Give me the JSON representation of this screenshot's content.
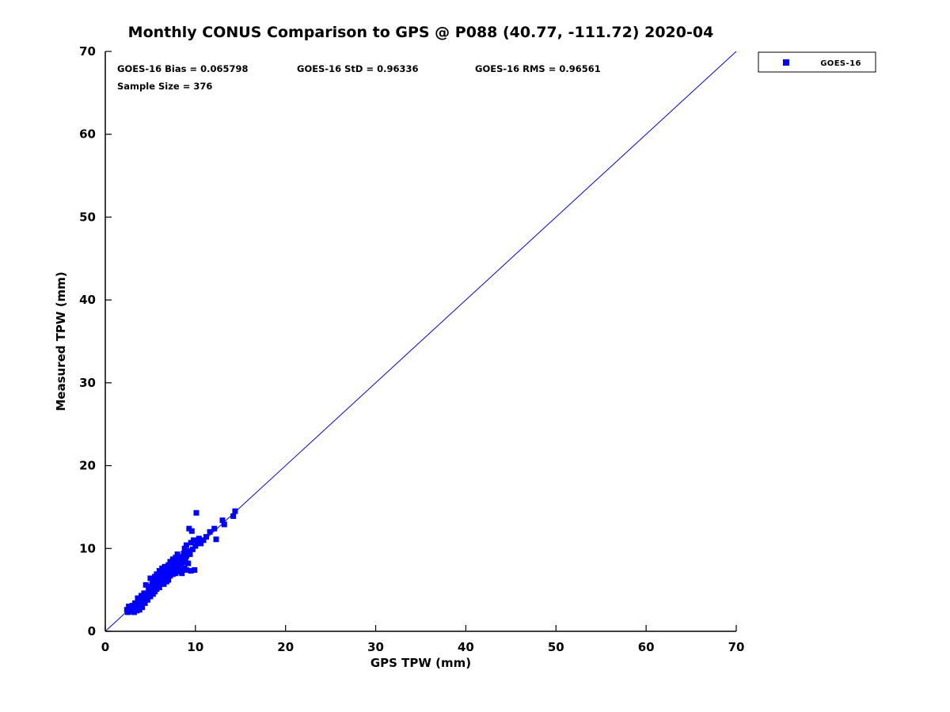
{
  "title": "Monthly CONUS Comparison to GPS @ P088 (40.77, -111.72) 2020-04",
  "annotations": {
    "bias": "GOES-16 Bias = 0.065798",
    "std": "GOES-16 StD = 0.96336",
    "rms": "GOES-16 RMS = 0.96561",
    "sample": "Sample Size = 376"
  },
  "legend": {
    "items": [
      {
        "label": "GOES-16",
        "marker": "square",
        "color": "#0000ff"
      }
    ]
  },
  "colors": {
    "marker": "#0000ff",
    "reference_line": "#0000ff",
    "axis": "#000000",
    "text": "#000000"
  },
  "chart_data": {
    "type": "scatter",
    "title": "Monthly CONUS Comparison to GPS @ P088 (40.77, -111.72) 2020-04",
    "xlabel": "GPS TPW (mm)",
    "ylabel": "Measured TPW (mm)",
    "xlim": [
      0,
      70
    ],
    "ylim": [
      0,
      70
    ],
    "xticks": [
      0,
      10,
      20,
      30,
      40,
      50,
      60,
      70
    ],
    "yticks": [
      0,
      10,
      20,
      30,
      40,
      50,
      60,
      70
    ],
    "grid": false,
    "legend_position": "top-right-outside",
    "reference_line": {
      "from": [
        0,
        0
      ],
      "to": [
        70,
        70
      ],
      "color": "#0000ff"
    },
    "stats": {
      "bias": 0.065798,
      "std": 0.96336,
      "rms": 0.96561,
      "sample_size": 376
    },
    "series": [
      {
        "name": "GOES-16",
        "marker": "square",
        "color": "#0000ff",
        "points": [
          [
            2.4,
            2.6
          ],
          [
            2.5,
            2.3
          ],
          [
            2.6,
            3.0
          ],
          [
            2.8,
            2.5
          ],
          [
            3.0,
            2.4
          ],
          [
            3.0,
            3.1
          ],
          [
            3.1,
            2.7
          ],
          [
            3.2,
            2.3
          ],
          [
            3.3,
            3.4
          ],
          [
            3.4,
            2.8
          ],
          [
            3.5,
            2.5
          ],
          [
            3.5,
            3.2
          ],
          [
            3.6,
            4.0
          ],
          [
            3.7,
            3.0
          ],
          [
            3.8,
            2.6
          ],
          [
            3.8,
            3.6
          ],
          [
            4.0,
            3.2
          ],
          [
            4.0,
            4.3
          ],
          [
            4.1,
            2.9
          ],
          [
            4.2,
            3.8
          ],
          [
            4.3,
            4.6
          ],
          [
            4.4,
            3.4
          ],
          [
            4.5,
            4.0
          ],
          [
            4.5,
            5.6
          ],
          [
            4.6,
            4.4
          ],
          [
            4.7,
            3.8
          ],
          [
            4.8,
            5.0
          ],
          [
            4.9,
            4.6
          ],
          [
            5.0,
            4.2
          ],
          [
            5.0,
            5.4
          ],
          [
            5.0,
            6.4
          ],
          [
            5.1,
            4.9
          ],
          [
            5.2,
            5.7
          ],
          [
            5.3,
            4.5
          ],
          [
            5.3,
            6.0
          ],
          [
            5.4,
            5.2
          ],
          [
            5.5,
            4.8
          ],
          [
            5.5,
            6.6
          ],
          [
            5.6,
            5.9
          ],
          [
            5.7,
            5.1
          ],
          [
            5.7,
            6.9
          ],
          [
            5.8,
            5.5
          ],
          [
            5.9,
            6.2
          ],
          [
            6.0,
            5.3
          ],
          [
            6.0,
            6.6
          ],
          [
            6.0,
            7.3
          ],
          [
            6.1,
            5.8
          ],
          [
            6.2,
            6.9
          ],
          [
            6.3,
            6.1
          ],
          [
            6.3,
            7.6
          ],
          [
            6.4,
            6.5
          ],
          [
            6.5,
            5.7
          ],
          [
            6.5,
            7.1
          ],
          [
            6.6,
            6.3
          ],
          [
            6.6,
            7.8
          ],
          [
            6.7,
            6.8
          ],
          [
            6.8,
            6.0
          ],
          [
            6.8,
            7.4
          ],
          [
            6.9,
            6.6
          ],
          [
            7.0,
            6.2
          ],
          [
            7.0,
            7.1
          ],
          [
            7.0,
            8.0
          ],
          [
            7.1,
            7.6
          ],
          [
            7.2,
            6.7
          ],
          [
            7.2,
            8.4
          ],
          [
            7.3,
            7.3
          ],
          [
            7.4,
            7.9
          ],
          [
            7.5,
            6.9
          ],
          [
            7.5,
            8.7
          ],
          [
            7.6,
            7.5
          ],
          [
            7.7,
            8.2
          ],
          [
            7.8,
            7.0
          ],
          [
            7.8,
            8.9
          ],
          [
            7.9,
            7.7
          ],
          [
            8.0,
            7.2
          ],
          [
            8.0,
            8.4
          ],
          [
            8.0,
            9.3
          ],
          [
            8.1,
            7.9
          ],
          [
            8.2,
            8.7
          ],
          [
            8.3,
            7.4
          ],
          [
            8.3,
            9.0
          ],
          [
            8.4,
            8.1
          ],
          [
            8.5,
            7.0
          ],
          [
            8.5,
            8.9
          ],
          [
            8.6,
            8.3
          ],
          [
            8.7,
            9.4
          ],
          [
            8.8,
            7.6
          ],
          [
            8.8,
            10.0
          ],
          [
            8.9,
            8.6
          ],
          [
            9.0,
            7.4
          ],
          [
            9.0,
            9.1
          ],
          [
            9.0,
            10.4
          ],
          [
            9.1,
            9.7
          ],
          [
            9.2,
            8.2
          ],
          [
            9.3,
            12.4
          ],
          [
            9.4,
            9.3
          ],
          [
            9.5,
            7.3
          ],
          [
            9.5,
            10.7
          ],
          [
            9.6,
            12.1
          ],
          [
            9.7,
            9.9
          ],
          [
            9.8,
            11.0
          ],
          [
            9.9,
            7.4
          ],
          [
            10.0,
            10.3
          ],
          [
            10.1,
            14.3
          ],
          [
            10.2,
            10.8
          ],
          [
            10.4,
            11.2
          ],
          [
            10.6,
            10.6
          ],
          [
            10.9,
            11.0
          ],
          [
            11.2,
            11.4
          ],
          [
            11.6,
            12.0
          ],
          [
            12.1,
            12.4
          ],
          [
            12.3,
            11.1
          ],
          [
            13.0,
            13.4
          ],
          [
            13.2,
            12.9
          ],
          [
            14.2,
            13.9
          ],
          [
            14.4,
            14.5
          ]
        ]
      }
    ]
  }
}
